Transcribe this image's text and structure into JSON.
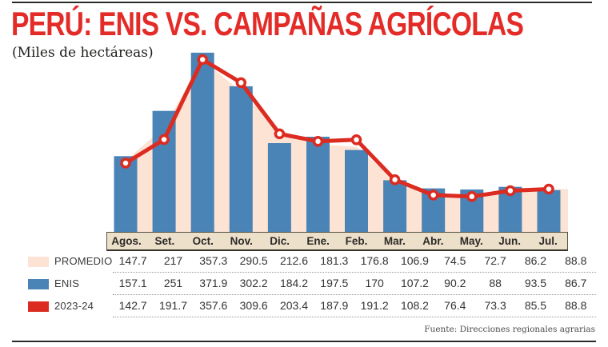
{
  "header": {
    "title_color": "#e32b28"
  },
  "footer": {
    "source": "Fuente: Direcciones regionales agrarias"
  },
  "colors": {
    "promedio_fill": "#fce3d4",
    "enis_bar": "#4a83b5",
    "line_red": "#dc2b20",
    "axis_strip_bg": "#ece0cb",
    "rule_dark": "#2a2a28"
  },
  "chart_data": {
    "type": "combo (area + bar + line)",
    "title": "PERÚ: ENIS VS. CAMPAÑAS AGRÍCOLAS",
    "subtitle_units": "(Miles de hectáreas)",
    "categories": [
      "Agos.",
      "Set.",
      "Oct.",
      "Nov.",
      "Dic.",
      "Ene.",
      "Feb.",
      "Mar.",
      "Abr.",
      "May.",
      "Jun.",
      "Jul."
    ],
    "series": [
      {
        "name": "PROMEDIO",
        "type": "area",
        "color": "#fce3d4",
        "values": [
          147.7,
          217,
          357.3,
          290.5,
          212.6,
          181.3,
          176.8,
          106.9,
          74.5,
          72.7,
          86.2,
          88.8
        ]
      },
      {
        "name": "ENIS",
        "type": "bar",
        "color": "#4a83b5",
        "values": [
          157.1,
          251,
          371.9,
          302.2,
          184.2,
          197.5,
          170,
          107.2,
          90.2,
          88,
          93.5,
          86.7
        ]
      },
      {
        "name": "2023-24",
        "type": "line",
        "color": "#dc2b20",
        "values": [
          142.7,
          191.7,
          357.6,
          309.6,
          203.4,
          187.9,
          191.2,
          108.2,
          76.4,
          73.3,
          85.5,
          88.8
        ]
      }
    ],
    "ylim": [
      0,
      385
    ],
    "grid": false,
    "legend_position": "left column of data table rows",
    "values_table_shown": true
  }
}
